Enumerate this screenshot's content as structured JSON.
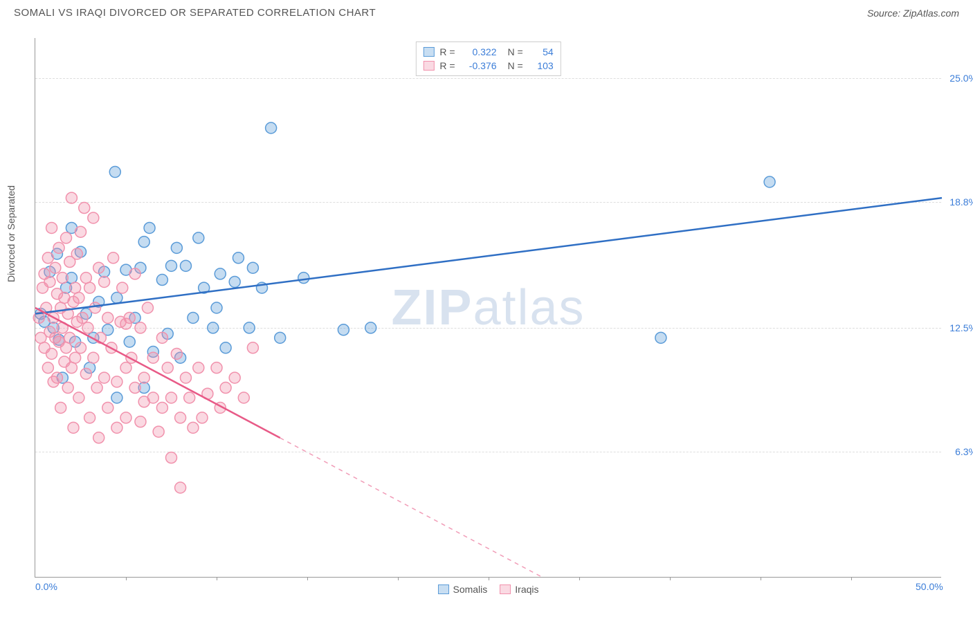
{
  "title": "SOMALI VS IRAQI DIVORCED OR SEPARATED CORRELATION CHART",
  "source": "Source: ZipAtlas.com",
  "ylabel": "Divorced or Separated",
  "watermark_prefix": "ZIP",
  "watermark_suffix": "atlas",
  "xlim": [
    0,
    50
  ],
  "ylim": [
    0,
    27
  ],
  "x_ticks": [
    0,
    5,
    10,
    15,
    20,
    25,
    30,
    35,
    40,
    45,
    50
  ],
  "x_tick_labels": {
    "0": "0.0%",
    "50": "50.0%"
  },
  "y_gridlines": [
    6.3,
    12.5,
    18.8,
    25.0
  ],
  "y_tick_labels": [
    "6.3%",
    "12.5%",
    "18.8%",
    "25.0%"
  ],
  "x_label_color": "#3b7dd8",
  "y_label_color": "#3b7dd8",
  "marker_radius": 8,
  "marker_stroke_width": 1.5,
  "marker_fill_opacity": 0.35,
  "line_width": 2.5,
  "series": [
    {
      "name": "Somalis",
      "color": "#5a9bd8",
      "line_color": "#2f6fc4",
      "r_value": "0.322",
      "n_value": "54",
      "trend": {
        "x1": 0,
        "y1": 13.2,
        "x2": 50,
        "y2": 19.0,
        "solid_until_x": 50
      },
      "points": [
        [
          0.3,
          13.2
        ],
        [
          0.5,
          12.8
        ],
        [
          0.8,
          15.3
        ],
        [
          1.0,
          12.5
        ],
        [
          1.2,
          16.2
        ],
        [
          1.3,
          11.9
        ],
        [
          1.5,
          10.0
        ],
        [
          1.7,
          14.5
        ],
        [
          2.0,
          15.0
        ],
        [
          2.2,
          11.8
        ],
        [
          2.5,
          16.3
        ],
        [
          2.8,
          13.2
        ],
        [
          3.0,
          10.5
        ],
        [
          3.2,
          12.0
        ],
        [
          3.8,
          15.3
        ],
        [
          4.0,
          12.4
        ],
        [
          4.4,
          20.3
        ],
        [
          4.5,
          9.0
        ],
        [
          5.0,
          15.4
        ],
        [
          5.2,
          11.8
        ],
        [
          5.5,
          13.0
        ],
        [
          5.8,
          15.5
        ],
        [
          6.0,
          9.5
        ],
        [
          6.3,
          17.5
        ],
        [
          6.5,
          11.3
        ],
        [
          7.0,
          14.9
        ],
        [
          7.3,
          12.2
        ],
        [
          7.5,
          15.6
        ],
        [
          8.0,
          11.0
        ],
        [
          8.3,
          15.6
        ],
        [
          8.7,
          13.0
        ],
        [
          9.0,
          17.0
        ],
        [
          9.3,
          14.5
        ],
        [
          9.8,
          12.5
        ],
        [
          10.2,
          15.2
        ],
        [
          10.5,
          11.5
        ],
        [
          11.0,
          14.8
        ],
        [
          11.2,
          16.0
        ],
        [
          11.8,
          12.5
        ],
        [
          12.5,
          14.5
        ],
        [
          13.0,
          22.5
        ],
        [
          13.5,
          12.0
        ],
        [
          14.8,
          15.0
        ],
        [
          17.0,
          12.4
        ],
        [
          18.5,
          12.5
        ],
        [
          34.5,
          12.0
        ],
        [
          40.5,
          19.8
        ],
        [
          7.8,
          16.5
        ],
        [
          4.5,
          14.0
        ],
        [
          2.0,
          17.5
        ],
        [
          3.5,
          13.8
        ],
        [
          6.0,
          16.8
        ],
        [
          10.0,
          13.5
        ],
        [
          12.0,
          15.5
        ]
      ]
    },
    {
      "name": "Iraqis",
      "color": "#f191ac",
      "line_color": "#e85a87",
      "r_value": "-0.376",
      "n_value": "103",
      "trend": {
        "x1": 0,
        "y1": 13.5,
        "x2": 28,
        "y2": 0,
        "solid_until_x": 13.5
      },
      "points": [
        [
          0.2,
          13.0
        ],
        [
          0.3,
          12.0
        ],
        [
          0.4,
          14.5
        ],
        [
          0.5,
          11.5
        ],
        [
          0.5,
          15.2
        ],
        [
          0.6,
          13.5
        ],
        [
          0.7,
          10.5
        ],
        [
          0.7,
          16.0
        ],
        [
          0.8,
          12.3
        ],
        [
          0.8,
          14.8
        ],
        [
          0.9,
          11.2
        ],
        [
          0.9,
          17.5
        ],
        [
          1.0,
          13.0
        ],
        [
          1.0,
          9.8
        ],
        [
          1.1,
          15.5
        ],
        [
          1.1,
          12.0
        ],
        [
          1.2,
          14.2
        ],
        [
          1.2,
          10.0
        ],
        [
          1.3,
          16.5
        ],
        [
          1.3,
          11.8
        ],
        [
          1.4,
          13.5
        ],
        [
          1.4,
          8.5
        ],
        [
          1.5,
          15.0
        ],
        [
          1.5,
          12.5
        ],
        [
          1.6,
          10.8
        ],
        [
          1.6,
          14.0
        ],
        [
          1.7,
          17.0
        ],
        [
          1.7,
          11.5
        ],
        [
          1.8,
          13.2
        ],
        [
          1.8,
          9.5
        ],
        [
          1.9,
          15.8
        ],
        [
          1.9,
          12.0
        ],
        [
          2.0,
          19.0
        ],
        [
          2.0,
          10.5
        ],
        [
          2.1,
          13.8
        ],
        [
          2.1,
          7.5
        ],
        [
          2.2,
          14.5
        ],
        [
          2.2,
          11.0
        ],
        [
          2.3,
          16.2
        ],
        [
          2.3,
          12.8
        ],
        [
          2.4,
          9.0
        ],
        [
          2.4,
          14.0
        ],
        [
          2.5,
          11.5
        ],
        [
          2.5,
          17.3
        ],
        [
          2.6,
          13.0
        ],
        [
          2.7,
          18.5
        ],
        [
          2.8,
          10.2
        ],
        [
          2.8,
          15.0
        ],
        [
          2.9,
          12.5
        ],
        [
          3.0,
          8.0
        ],
        [
          3.0,
          14.5
        ],
        [
          3.2,
          11.0
        ],
        [
          3.2,
          18.0
        ],
        [
          3.3,
          13.5
        ],
        [
          3.4,
          9.5
        ],
        [
          3.5,
          15.5
        ],
        [
          3.5,
          7.0
        ],
        [
          3.6,
          12.0
        ],
        [
          3.8,
          10.0
        ],
        [
          3.8,
          14.8
        ],
        [
          4.0,
          8.5
        ],
        [
          4.0,
          13.0
        ],
        [
          4.2,
          11.5
        ],
        [
          4.3,
          16.0
        ],
        [
          4.5,
          9.8
        ],
        [
          4.5,
          7.5
        ],
        [
          4.7,
          12.8
        ],
        [
          4.8,
          14.5
        ],
        [
          5.0,
          10.5
        ],
        [
          5.0,
          8.0
        ],
        [
          5.2,
          13.0
        ],
        [
          5.3,
          11.0
        ],
        [
          5.5,
          9.5
        ],
        [
          5.5,
          15.2
        ],
        [
          5.8,
          7.8
        ],
        [
          5.8,
          12.5
        ],
        [
          6.0,
          10.0
        ],
        [
          6.0,
          8.8
        ],
        [
          6.2,
          13.5
        ],
        [
          6.5,
          11.0
        ],
        [
          6.5,
          9.0
        ],
        [
          6.8,
          7.3
        ],
        [
          7.0,
          12.0
        ],
        [
          7.0,
          8.5
        ],
        [
          7.3,
          10.5
        ],
        [
          7.5,
          9.0
        ],
        [
          7.5,
          6.0
        ],
        [
          7.8,
          11.2
        ],
        [
          8.0,
          8.0
        ],
        [
          8.0,
          4.5
        ],
        [
          8.3,
          10.0
        ],
        [
          8.5,
          9.0
        ],
        [
          8.7,
          7.5
        ],
        [
          9.0,
          10.5
        ],
        [
          9.2,
          8.0
        ],
        [
          9.5,
          9.2
        ],
        [
          10.0,
          10.5
        ],
        [
          10.2,
          8.5
        ],
        [
          10.5,
          9.5
        ],
        [
          11.0,
          10.0
        ],
        [
          11.5,
          9.0
        ],
        [
          12.0,
          11.5
        ],
        [
          5.0,
          12.7
        ]
      ]
    }
  ],
  "legend_top_labels": {
    "r": "R =",
    "n": "N ="
  },
  "legend_bottom": [
    "Somalis",
    "Iraqis"
  ]
}
